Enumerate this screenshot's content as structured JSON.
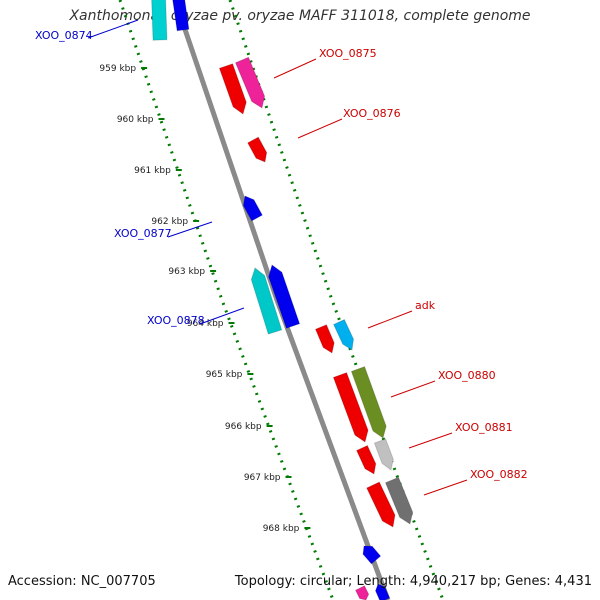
{
  "title": "Xanthomonas oryzae pv. oryzae MAFF 311018, complete genome",
  "accession_text": "Accession: NC_007705",
  "stats_text": "Topology: circular; Length: 4,940,217 bp; Genes: 4,431",
  "colors": {
    "backbone": "#8a8a8a",
    "forward_label": "#cc0000",
    "reverse_label": "#0000cc",
    "tick": "#007a00"
  },
  "kbp_ticks": [
    "959 kbp",
    "960 kbp",
    "961 kbp",
    "962 kbp",
    "963 kbp",
    "964 kbp",
    "965 kbp",
    "966 kbp",
    "967 kbp",
    "968 kbp"
  ],
  "gene_labels": [
    {
      "text": "XOO_0874",
      "strand": "reverse"
    },
    {
      "text": "XOO_0875",
      "strand": "forward"
    },
    {
      "text": "XOO_0876",
      "strand": "forward"
    },
    {
      "text": "XOO_0877",
      "strand": "reverse"
    },
    {
      "text": "XOO_0878",
      "strand": "reverse"
    },
    {
      "text": "adk",
      "strand": "forward"
    },
    {
      "text": "XOO_0880",
      "strand": "forward"
    },
    {
      "text": "XOO_0881",
      "strand": "forward"
    },
    {
      "text": "XOO_0882",
      "strand": "forward"
    }
  ],
  "features": [
    {
      "color": "#00d0d0",
      "strand": "reverse"
    },
    {
      "color": "#0000ee",
      "strand": "reverse"
    },
    {
      "color": "#ee0000",
      "strand": "forward"
    },
    {
      "color": "#ee2299",
      "strand": "forward"
    },
    {
      "color": "#ee0000",
      "strand": "forward"
    },
    {
      "color": "#0000ee",
      "strand": "reverse"
    },
    {
      "color": "#00c8c8",
      "strand": "reverse"
    },
    {
      "color": "#0000ee",
      "strand": "reverse"
    },
    {
      "color": "#ee0000",
      "strand": "forward"
    },
    {
      "color": "#00b0ee",
      "strand": "forward"
    },
    {
      "color": "#ee0000",
      "strand": "forward"
    },
    {
      "color": "#6b8e23",
      "strand": "forward"
    },
    {
      "color": "#ee0000",
      "strand": "forward"
    },
    {
      "color": "#c0c0c0",
      "strand": "forward"
    },
    {
      "color": "#ee0000",
      "strand": "forward"
    },
    {
      "color": "#707070",
      "strand": "forward"
    },
    {
      "color": "#0000ee",
      "strand": "reverse"
    },
    {
      "color": "#ee2299",
      "strand": "forward"
    },
    {
      "color": "#0000ee",
      "strand": "reverse"
    }
  ]
}
